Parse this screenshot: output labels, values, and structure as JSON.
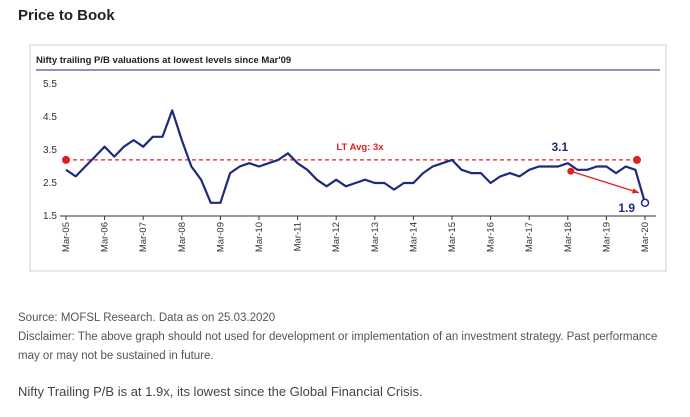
{
  "header": {
    "title": "Price to Book"
  },
  "chart_data": {
    "type": "line",
    "title": "Nifty trailing P/B valuations at lowest levels since Mar'09",
    "categories": [
      "Mar-05",
      null,
      null,
      null,
      "Mar-06",
      null,
      null,
      null,
      "Mar-07",
      null,
      null,
      null,
      "Mar-08",
      null,
      null,
      null,
      "Mar-09",
      null,
      null,
      null,
      "Mar-10",
      null,
      null,
      null,
      "Mar-11",
      null,
      null,
      null,
      "Mar-12",
      null,
      null,
      null,
      "Mar-13",
      null,
      null,
      null,
      "Mar-14",
      null,
      null,
      null,
      "Mar-15",
      null,
      null,
      null,
      "Mar-16",
      null,
      null,
      null,
      "Mar-17",
      null,
      null,
      null,
      "Mar-18",
      null,
      null,
      null,
      "Mar-19",
      null,
      null,
      null,
      "Mar-20"
    ],
    "series": [
      {
        "name": "Nifty trailing P/B",
        "color": "#1f2a7c",
        "values": [
          2.9,
          2.7,
          3.0,
          3.3,
          3.6,
          3.3,
          3.6,
          3.8,
          3.6,
          3.9,
          3.9,
          4.7,
          3.8,
          3.0,
          2.6,
          1.9,
          1.9,
          2.8,
          3.0,
          3.1,
          3.0,
          3.1,
          3.2,
          3.4,
          3.1,
          2.9,
          2.6,
          2.4,
          2.6,
          2.4,
          2.5,
          2.6,
          2.5,
          2.5,
          2.3,
          2.5,
          2.5,
          2.8,
          3.0,
          3.1,
          3.2,
          2.9,
          2.8,
          2.8,
          2.5,
          2.7,
          2.8,
          2.7,
          2.9,
          3.0,
          3.0,
          3.0,
          3.1,
          2.9,
          2.9,
          3.0,
          3.0,
          2.8,
          3.0,
          2.9,
          1.9
        ]
      }
    ],
    "labeled_points": [
      52,
      60
    ],
    "reference_line": {
      "value": 3.2,
      "label": "LT Avg: 3x",
      "color": "#e02020"
    },
    "ylim": [
      1.5,
      5.5
    ],
    "yticks": [
      1.5,
      2.5,
      3.5,
      4.5,
      5.5
    ]
  },
  "notes": {
    "source": "Source: MOFSL Research. Data as on 25.03.2020",
    "disclaimer": "Disclaimer: The above graph should not used for development or implementation of an investment strategy. Past performance may or may not be sustained in future.",
    "lead": "Nifty Trailing P/B is at 1.9x, its lowest since the Global Financial Crisis."
  }
}
